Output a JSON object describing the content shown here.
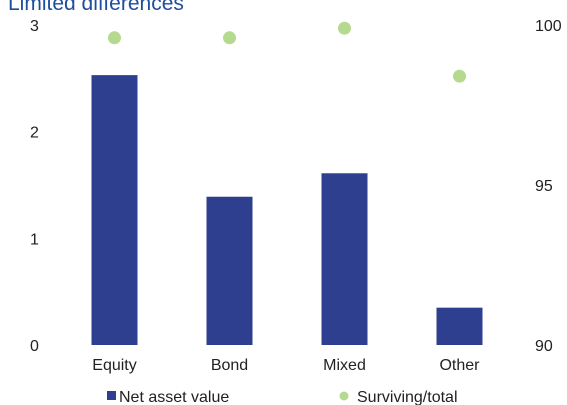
{
  "chart_data": {
    "type": "bar",
    "title": "Limited differences",
    "categories": [
      "Equity",
      "Bond",
      "Mixed",
      "Other"
    ],
    "series": [
      {
        "name": "Net asset value",
        "type": "bar",
        "axis": "left",
        "color": "#2e3f8f",
        "values": [
          2.53,
          1.39,
          1.61,
          0.35
        ]
      },
      {
        "name": "Surviving/total",
        "type": "scatter",
        "axis": "right",
        "color": "#b5d98f",
        "values": [
          99.6,
          99.6,
          99.9,
          98.4
        ]
      }
    ],
    "y_left": {
      "ylim": [
        0,
        3
      ],
      "ticks": [
        "0",
        "1",
        "2",
        "3"
      ]
    },
    "y_right": {
      "ylim": [
        90,
        100
      ],
      "ticks": [
        "90",
        "95",
        "100"
      ]
    },
    "grid": false,
    "legend": "bottom"
  }
}
